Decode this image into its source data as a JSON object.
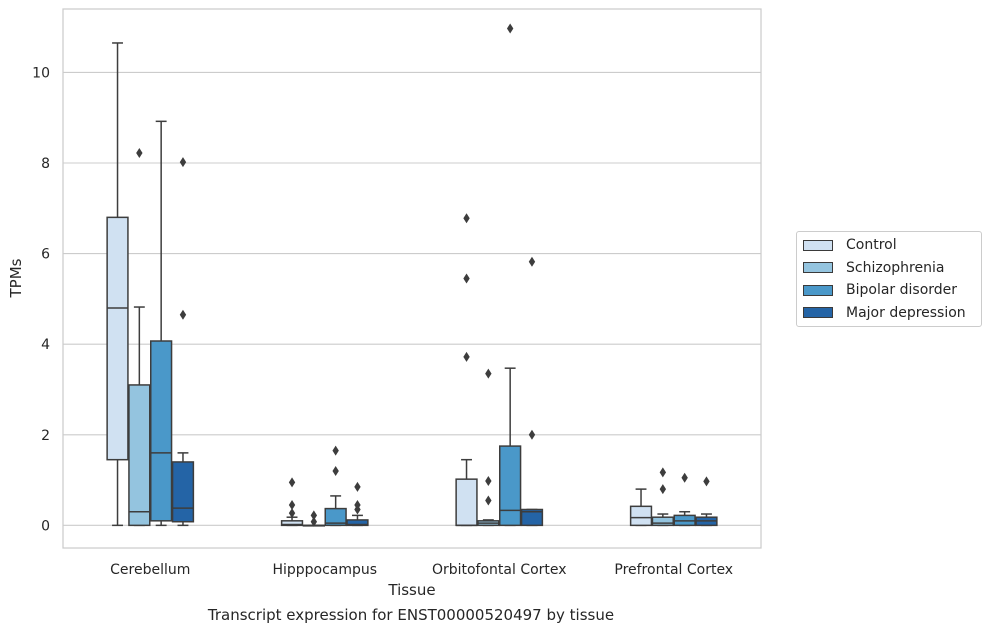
{
  "chart_data": {
    "type": "boxplot",
    "title": "",
    "caption": "Transcript expression for ENST00000520497 by tissue",
    "xlabel": "Tissue",
    "ylabel": "TPMs",
    "ylim": [
      -0.5,
      11.4
    ],
    "yticks": [
      0,
      2,
      4,
      6,
      8,
      10
    ],
    "grid": true,
    "legend_position": "right",
    "categories": [
      "Cerebellum",
      "Hipppocampus",
      "Orbitofontal Cortex",
      "Prefrontal Cortex"
    ],
    "series": [
      {
        "name": "Control",
        "color": "#d0e1f2",
        "boxes": [
          {
            "whislo": 0,
            "q1": 1.45,
            "med": 4.8,
            "q3": 6.8,
            "whishi": 10.65,
            "fliers": []
          },
          {
            "whislo": 0,
            "q1": 0,
            "med": 0.02,
            "q3": 0.1,
            "whishi": 0.18,
            "fliers": [
              0.27,
              0.45,
              0.95
            ]
          },
          {
            "whislo": 0,
            "q1": 0,
            "med": 0,
            "q3": 1.02,
            "whishi": 1.45,
            "fliers": [
              3.72,
              5.45,
              6.78
            ]
          },
          {
            "whislo": 0,
            "q1": 0,
            "med": 0.17,
            "q3": 0.42,
            "whishi": 0.8,
            "fliers": []
          }
        ]
      },
      {
        "name": "Schizophrenia",
        "color": "#94c4df",
        "boxes": [
          {
            "whislo": 0,
            "q1": 0,
            "med": 0.3,
            "q3": 3.1,
            "whishi": 4.82,
            "fliers": [
              8.22
            ]
          },
          {
            "whislo": 0,
            "q1": 0,
            "med": 0,
            "q3": 0,
            "whishi": 0,
            "fliers": [
              0.08,
              0.22
            ]
          },
          {
            "whislo": 0,
            "q1": 0,
            "med": 0.05,
            "q3": 0.1,
            "whishi": 0.12,
            "fliers": [
              0.55,
              0.98,
              3.35
            ]
          },
          {
            "whislo": 0,
            "q1": 0,
            "med": 0.05,
            "q3": 0.18,
            "whishi": 0.25,
            "fliers": [
              0.8,
              1.17
            ]
          }
        ]
      },
      {
        "name": "Bipolar disorder",
        "color": "#4a98c9",
        "boxes": [
          {
            "whislo": 0,
            "q1": 0.1,
            "med": 1.6,
            "q3": 4.07,
            "whishi": 8.92,
            "fliers": []
          },
          {
            "whislo": 0,
            "q1": 0,
            "med": 0.05,
            "q3": 0.37,
            "whishi": 0.65,
            "fliers": [
              1.2,
              1.65
            ]
          },
          {
            "whislo": 0,
            "q1": 0,
            "med": 0.33,
            "q3": 1.75,
            "whishi": 3.47,
            "fliers": [
              10.97
            ]
          },
          {
            "whislo": 0,
            "q1": 0,
            "med": 0.1,
            "q3": 0.22,
            "whishi": 0.3,
            "fliers": [
              1.05
            ]
          }
        ]
      },
      {
        "name": "Major depression",
        "color": "#2464a6",
        "boxes": [
          {
            "whislo": 0,
            "q1": 0.08,
            "med": 0.38,
            "q3": 1.4,
            "whishi": 1.6,
            "fliers": [
              4.65,
              8.02
            ]
          },
          {
            "whislo": 0,
            "q1": 0,
            "med": 0.02,
            "q3": 0.12,
            "whishi": 0.22,
            "fliers": [
              0.35,
              0.45,
              0.85
            ]
          },
          {
            "whislo": 0,
            "q1": 0,
            "med": 0.3,
            "q3": 0.35,
            "whishi": 0.35,
            "fliers": [
              2.0,
              5.82
            ]
          },
          {
            "whislo": 0,
            "q1": 0,
            "med": 0.1,
            "q3": 0.18,
            "whishi": 0.25,
            "fliers": [
              0.97
            ]
          }
        ]
      }
    ]
  }
}
